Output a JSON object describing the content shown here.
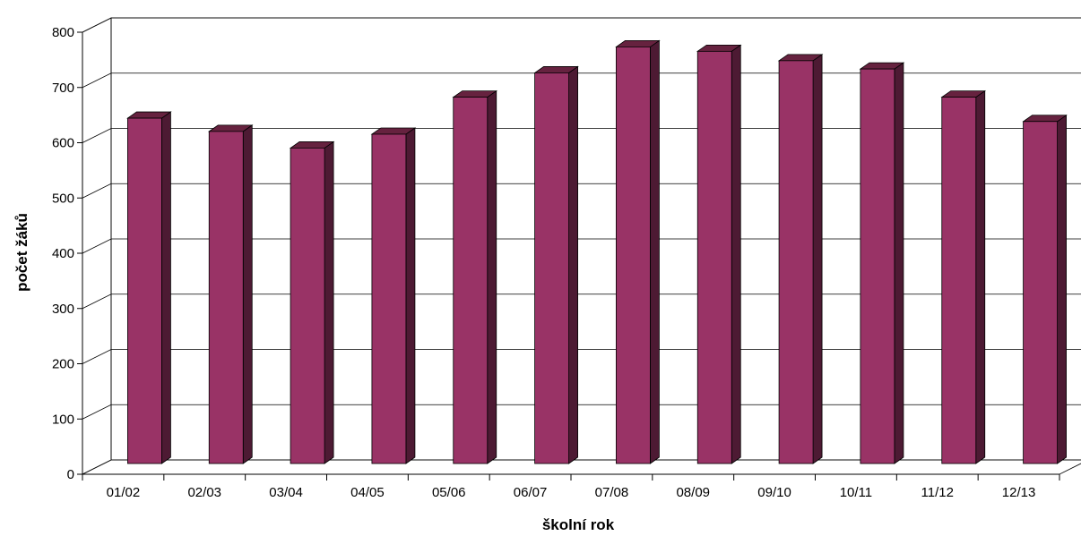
{
  "chart_data": {
    "type": "bar",
    "style": "3d-column",
    "title": "",
    "xlabel": "školní rok",
    "ylabel": "počet žáků",
    "categories": [
      "01/02",
      "02/03",
      "03/04",
      "04/05",
      "05/06",
      "06/07",
      "07/08",
      "08/09",
      "09/10",
      "10/11",
      "11/12",
      "12/13"
    ],
    "series": [
      {
        "values": [
          625,
          601,
          571,
          596,
          663,
          707,
          754,
          746,
          729,
          714,
          663,
          619
        ]
      }
    ],
    "ylim": [
      0,
      800
    ],
    "yticks": [
      0,
      100,
      200,
      300,
      400,
      500,
      600,
      700,
      800
    ],
    "grid": true,
    "legend": "none",
    "colors": {
      "bar_front": "#993366",
      "bar_side": "#4d1a33",
      "bar_top": "#66223f",
      "grid": "#000000"
    }
  }
}
